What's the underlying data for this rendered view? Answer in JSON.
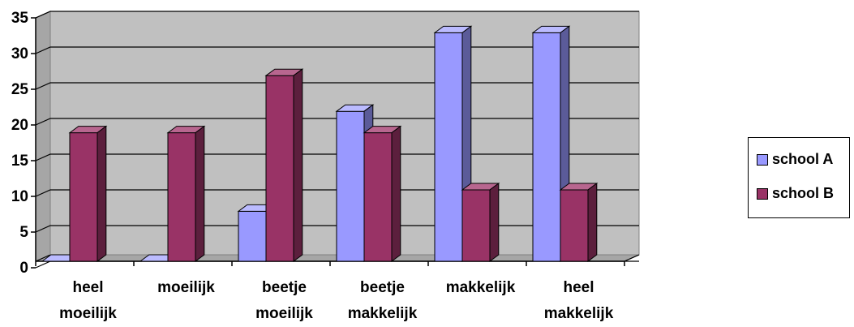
{
  "chart_data": {
    "type": "bar",
    "style": "3d-clustered-column",
    "categories": [
      [
        "heel",
        "moeilijk"
      ],
      [
        "moeilijk"
      ],
      [
        "beetje",
        "moeilijk"
      ],
      [
        "beetje",
        "makkelijk"
      ],
      [
        "makkelijk"
      ],
      [
        "heel",
        "makkelijk"
      ]
    ],
    "series": [
      {
        "name": "school A",
        "values": [
          0,
          0,
          7,
          21,
          32,
          32
        ],
        "color": "#9999ff",
        "side": "#5b5b99",
        "top": "#bbbbff"
      },
      {
        "name": "school B",
        "values": [
          18,
          18,
          26,
          18,
          10,
          10
        ],
        "color": "#993366",
        "side": "#5c1f3d",
        "top": "#b8668f"
      }
    ],
    "ylim": [
      0,
      35
    ],
    "yticks": [
      "0",
      "5",
      "10",
      "15",
      "20",
      "25",
      "30",
      "35"
    ],
    "grid": true,
    "plot_background": "#c0c0c0",
    "legend_position": "right"
  }
}
